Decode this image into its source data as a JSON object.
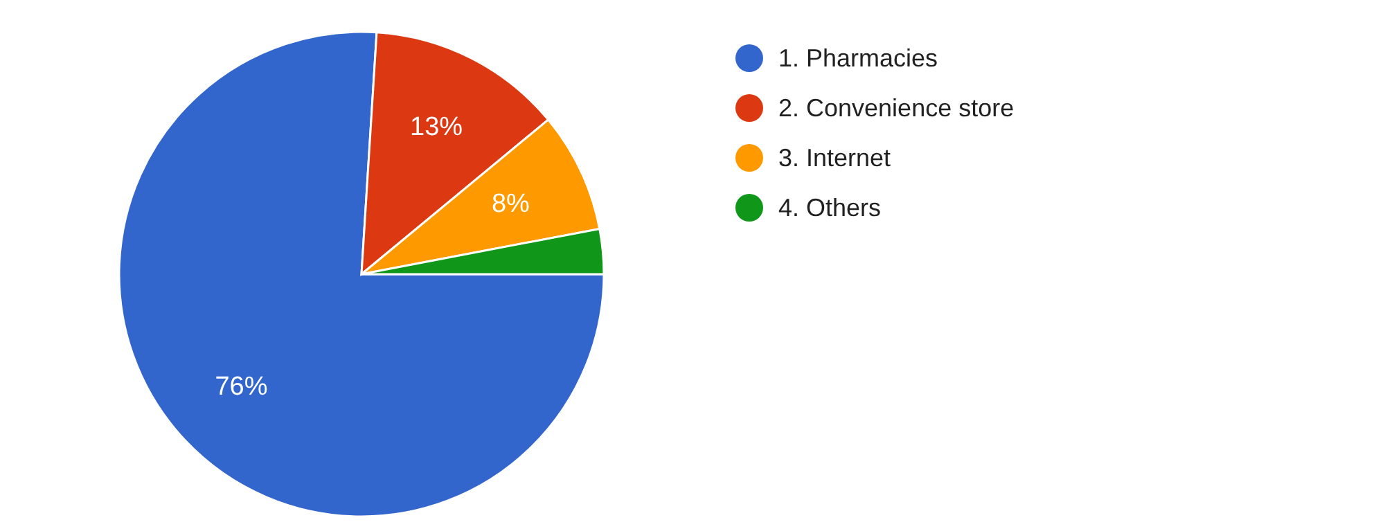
{
  "chart_data": {
    "type": "pie",
    "categories": [
      "1. Pharmacies",
      "2. Convenience store",
      "3. Internet",
      "4. Others"
    ],
    "values": [
      76,
      13,
      8,
      3
    ],
    "colors": [
      "#3366cc",
      "#dc3912",
      "#ff9900",
      "#109618"
    ],
    "value_labels": [
      "76%",
      "13%",
      "8%",
      null
    ],
    "legend": "right"
  }
}
